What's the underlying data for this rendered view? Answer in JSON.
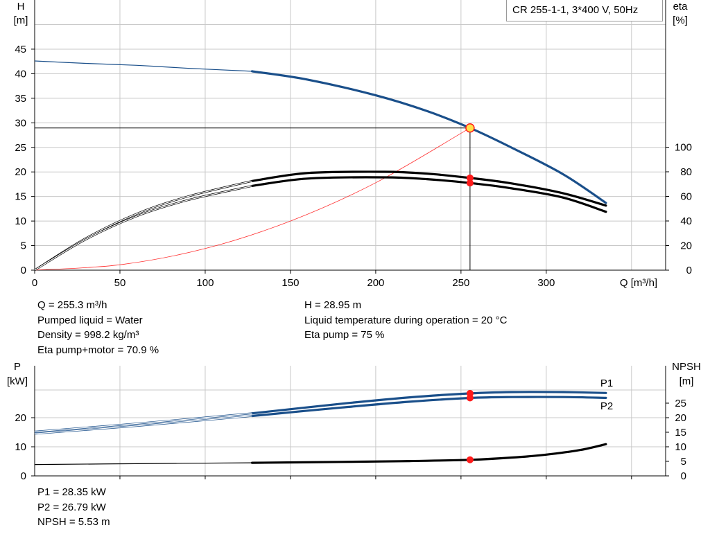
{
  "title": "CR 255-1-1, 3*400 V, 50Hz",
  "colors": {
    "head_curve": "#1a4f8a",
    "efficiency_curve": "#000000",
    "system_curve": "#ff3030",
    "duty_point": "#ff1a1a",
    "duty_point_head": "#ffe14a",
    "grid": "#c8c8c8"
  },
  "info_top": {
    "left": [
      "Q = 255.3 m³/h",
      "Pumped liquid = Water",
      "Density = 998.2 kg/m³",
      "Eta pump+motor = 70.9 %"
    ],
    "right": [
      "H = 28.95 m",
      "Liquid temperature during operation = 20 °C",
      "Eta pump = 75 %"
    ]
  },
  "info_bottom": [
    "P1 = 28.35 kW",
    "P2 = 26.79 kW",
    "NPSH = 5.53 m"
  ],
  "chart_data": [
    {
      "type": "line",
      "title": "CR 255-1-1, 3*400 V, 50Hz",
      "xlabel": "Q [m³/h]",
      "ylabel_left": [
        "H",
        "[m]"
      ],
      "ylabel_right": [
        "eta",
        "[%]"
      ],
      "xlim": [
        0,
        370
      ],
      "ylim_left": [
        0,
        50
      ],
      "ylim_right": [
        0,
        135
      ],
      "x_ticks": [
        0,
        50,
        100,
        150,
        200,
        250,
        300
      ],
      "y_ticks_left": [
        0,
        5,
        10,
        15,
        20,
        25,
        30,
        35,
        40,
        45
      ],
      "y_ticks_right": [
        0,
        20,
        40,
        60,
        80,
        100
      ],
      "grid": true,
      "series": [
        {
          "key": "H",
          "axis": "left",
          "x": [
            0,
            30,
            60,
            90,
            127.5,
            160,
            200,
            230,
            255.3,
            280,
            310,
            335
          ],
          "y": [
            42.6,
            42.1,
            41.7,
            41.1,
            40.5,
            38.8,
            35.6,
            32.4,
            28.95,
            24.9,
            19.5,
            13.7
          ]
        },
        {
          "key": "eta_pump",
          "axis": "right",
          "x": [
            0,
            30,
            60,
            90,
            127.5,
            160,
            205,
            230,
            255.3,
            280,
            310,
            335
          ],
          "y": [
            0,
            26,
            46,
            60,
            72.5,
            79,
            80,
            78.5,
            75,
            70.5,
            62.5,
            52.5
          ]
        },
        {
          "key": "eta_pump_motor",
          "axis": "right",
          "x": [
            0,
            30,
            60,
            90,
            127.5,
            160,
            205,
            230,
            255.3,
            280,
            310,
            335
          ],
          "y": [
            0,
            25,
            44,
            57,
            68.5,
            74.5,
            75.5,
            74,
            70.9,
            66.5,
            59,
            47.5
          ]
        },
        {
          "key": "system_curve",
          "axis": "left",
          "x": [
            0,
            50,
            100,
            150,
            200,
            255.3
          ],
          "y": [
            0,
            1.1,
            4.4,
            10.0,
            17.8,
            28.95
          ]
        }
      ],
      "duty_point": {
        "Q": 255.3,
        "H": 28.95,
        "eta_pump": 75,
        "eta_pump_motor": 70.9
      }
    },
    {
      "type": "line",
      "xlim": [
        0,
        370
      ],
      "ylabel_left": [
        "P",
        "[kW]"
      ],
      "ylabel_right": [
        "NPSH",
        "[m]"
      ],
      "ylim_left": [
        0,
        30
      ],
      "ylim_right": [
        0,
        30
      ],
      "y_ticks_left": [
        0,
        10,
        20
      ],
      "y_ticks_right": [
        0,
        5,
        10,
        15,
        20,
        25
      ],
      "grid": true,
      "series": [
        {
          "key": "P1",
          "name": "P1",
          "axis": "left",
          "x": [
            0,
            60,
            127.5,
            180,
            220,
            255.3,
            280,
            310,
            335
          ],
          "y": [
            15.2,
            18.0,
            21.5,
            24.8,
            27.0,
            28.35,
            28.8,
            28.8,
            28.5
          ]
        },
        {
          "key": "P2",
          "name": "P2",
          "axis": "left",
          "x": [
            0,
            60,
            127.5,
            180,
            220,
            255.3,
            280,
            310,
            335
          ],
          "y": [
            14.5,
            17.2,
            20.6,
            23.5,
            25.5,
            26.79,
            27.1,
            27.1,
            26.8
          ]
        },
        {
          "key": "NPSH",
          "axis": "right",
          "x": [
            0,
            60,
            127.5,
            180,
            220,
            255.3,
            280,
            300,
            320,
            335
          ],
          "y": [
            3.9,
            4.2,
            4.5,
            4.8,
            5.1,
            5.53,
            6.3,
            7.3,
            8.9,
            10.9
          ]
        }
      ],
      "duty_point": {
        "Q": 255.3,
        "P1": 28.35,
        "P2": 26.79,
        "NPSH": 5.53
      }
    }
  ]
}
